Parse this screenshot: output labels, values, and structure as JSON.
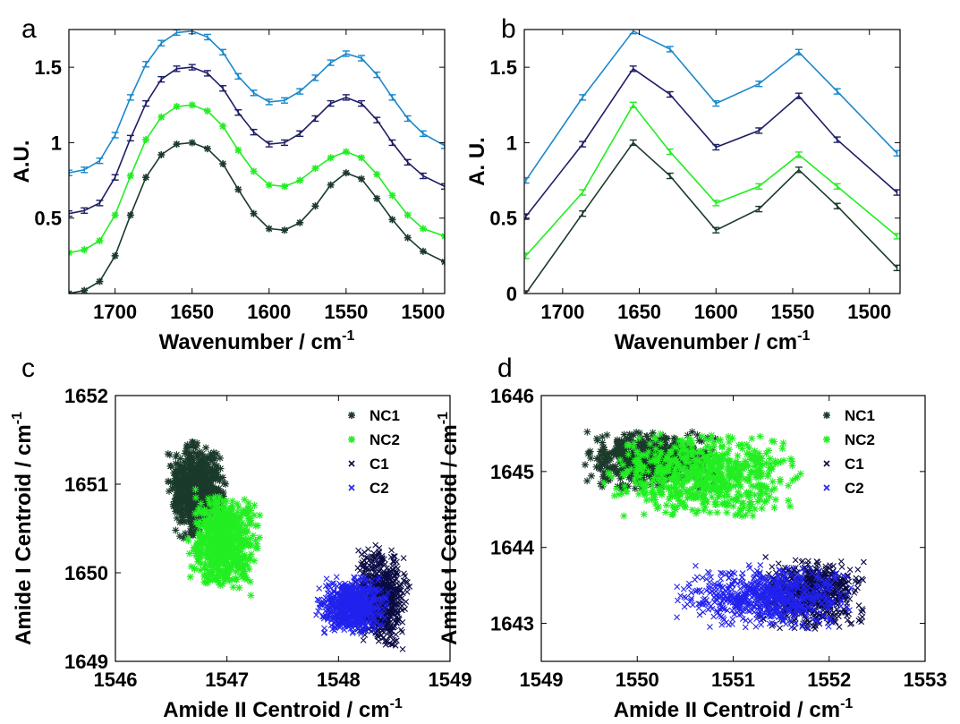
{
  "colors": {
    "NC1": "#1b3a2b",
    "NC2": "#22ee22",
    "C1": "#0b0b44",
    "C2": "#2222ee",
    "top_line": "#1a88cc",
    "second_line": "#1e1e66"
  },
  "chart_data": [
    {
      "panel": "a",
      "type": "line",
      "xlabel": "Wavenumber / cm",
      "xlabel_sup": "-1",
      "ylabel": "A.U.",
      "xlim": [
        1730,
        1486
      ],
      "ylim": [
        0,
        1.75
      ],
      "xticks": [
        "1700",
        "1650",
        "1600",
        "1550",
        "1500"
      ],
      "xtick_values": [
        1700,
        1650,
        1600,
        1550,
        1500
      ],
      "yticks": [
        "0.5",
        "1",
        "1.5"
      ],
      "ytick_values": [
        0.5,
        1,
        1.5
      ],
      "x": [
        1730,
        1720,
        1710,
        1700,
        1690,
        1680,
        1670,
        1660,
        1650,
        1640,
        1630,
        1620,
        1610,
        1600,
        1590,
        1580,
        1570,
        1560,
        1550,
        1540,
        1530,
        1520,
        1510,
        1500,
        1486
      ],
      "series": [
        {
          "color": "top_line",
          "marker": "errorbar",
          "values": [
            0.8,
            0.82,
            0.88,
            1.05,
            1.3,
            1.52,
            1.66,
            1.73,
            1.74,
            1.7,
            1.6,
            1.44,
            1.33,
            1.27,
            1.28,
            1.34,
            1.43,
            1.53,
            1.59,
            1.56,
            1.45,
            1.3,
            1.16,
            1.06,
            0.98
          ]
        },
        {
          "color": "second_line",
          "marker": "errorbar",
          "values": [
            0.53,
            0.55,
            0.6,
            0.77,
            1.03,
            1.26,
            1.42,
            1.49,
            1.5,
            1.46,
            1.36,
            1.2,
            1.07,
            0.99,
            1.0,
            1.06,
            1.16,
            1.26,
            1.3,
            1.26,
            1.15,
            1.0,
            0.87,
            0.78,
            0.71
          ]
        },
        {
          "color": "NC2",
          "marker": "star",
          "values": [
            0.27,
            0.29,
            0.35,
            0.52,
            0.78,
            1.02,
            1.17,
            1.24,
            1.25,
            1.21,
            1.11,
            0.95,
            0.81,
            0.72,
            0.71,
            0.75,
            0.83,
            0.9,
            0.94,
            0.9,
            0.79,
            0.65,
            0.52,
            0.43,
            0.38
          ]
        },
        {
          "color": "NC1",
          "marker": "star",
          "values": [
            0.0,
            0.02,
            0.08,
            0.25,
            0.52,
            0.77,
            0.92,
            0.99,
            1.0,
            0.96,
            0.86,
            0.69,
            0.53,
            0.43,
            0.42,
            0.47,
            0.58,
            0.72,
            0.8,
            0.76,
            0.63,
            0.49,
            0.37,
            0.28,
            0.21
          ]
        }
      ]
    },
    {
      "panel": "b",
      "type": "line",
      "xlabel": "Wavenumber / cm",
      "xlabel_sup": "-1",
      "ylabel": "A. U.",
      "xlim": [
        1725,
        1480
      ],
      "ylim": [
        0,
        1.75
      ],
      "xticks": [
        "1700",
        "1650",
        "1600",
        "1550",
        "1500"
      ],
      "xtick_values": [
        1700,
        1650,
        1600,
        1550,
        1500
      ],
      "yticks": [
        "0",
        "0.5",
        "1",
        "1.5"
      ],
      "ytick_values": [
        0,
        0.5,
        1,
        1.5
      ],
      "x": [
        1724,
        1687,
        1654,
        1630,
        1600,
        1572,
        1546,
        1521,
        1482
      ],
      "series": [
        {
          "color": "top_line",
          "values": [
            0.75,
            1.3,
            1.74,
            1.62,
            1.26,
            1.39,
            1.6,
            1.34,
            0.93
          ]
        },
        {
          "color": "second_line",
          "values": [
            0.51,
            0.99,
            1.49,
            1.32,
            0.97,
            1.08,
            1.31,
            1.02,
            0.67
          ]
        },
        {
          "color": "NC2",
          "values": [
            0.25,
            0.67,
            1.25,
            0.94,
            0.6,
            0.71,
            0.92,
            0.71,
            0.38
          ]
        },
        {
          "color": "NC1",
          "values": [
            0.0,
            0.53,
            1.0,
            0.78,
            0.42,
            0.56,
            0.82,
            0.58,
            0.17
          ]
        }
      ]
    },
    {
      "panel": "c",
      "type": "scatter",
      "xlabel": "Amide II Centroid / cm",
      "xlabel_sup": "-1",
      "ylabel": "Amide I Centroid / cm",
      "ylabel_sup": "-1",
      "xlim": [
        1546,
        1549
      ],
      "ylim": [
        1649,
        1652
      ],
      "xticks": [
        "1546",
        "1547",
        "1548",
        "1549"
      ],
      "xtick_values": [
        1546,
        1547,
        1548,
        1549
      ],
      "yticks": [
        "1649",
        "1650",
        "1651",
        "1652"
      ],
      "ytick_values": [
        1649,
        1650,
        1651,
        1652
      ],
      "legend_position": "top-right",
      "series": [
        {
          "name": "NC1",
          "color": "NC1",
          "marker": "star",
          "center": [
            1546.72,
            1650.95
          ],
          "spread": [
            0.14,
            0.28
          ],
          "tilt": 0.3
        },
        {
          "name": "NC2",
          "color": "NC2",
          "marker": "star",
          "center": [
            1546.97,
            1650.35
          ],
          "spread": [
            0.17,
            0.3
          ],
          "tilt": -0.15
        },
        {
          "name": "C1",
          "color": "C1",
          "marker": "x",
          "center": [
            1548.38,
            1649.72
          ],
          "spread": [
            0.13,
            0.3
          ],
          "tilt": -0.2
        },
        {
          "name": "C2",
          "color": "C2",
          "marker": "x",
          "center": [
            1548.12,
            1649.63
          ],
          "spread": [
            0.17,
            0.17
          ],
          "tilt": 0.0
        }
      ]
    },
    {
      "panel": "d",
      "type": "scatter",
      "xlabel": "Amide II Centroid / cm",
      "xlabel_sup": "-1",
      "ylabel": "Amide I Centroid / cm",
      "ylabel_sup": "-1",
      "xlim": [
        1549,
        1553
      ],
      "ylim": [
        1642.5,
        1646
      ],
      "xticks": [
        "1549",
        "1550",
        "1551",
        "1552",
        "1553"
      ],
      "xtick_values": [
        1549,
        1550,
        1551,
        1552,
        1553
      ],
      "yticks": [
        "1643",
        "1644",
        "1645",
        "1646"
      ],
      "ytick_values": [
        1643,
        1644,
        1645,
        1646
      ],
      "legend_position": "top-right",
      "series": [
        {
          "name": "NC1",
          "color": "NC1",
          "marker": "star",
          "center": [
            1550.15,
            1645.15
          ],
          "spread": [
            0.38,
            0.2
          ],
          "tilt": 0.0
        },
        {
          "name": "NC2",
          "color": "NC2",
          "marker": "star",
          "center": [
            1550.7,
            1644.95
          ],
          "spread": [
            0.55,
            0.3
          ],
          "tilt": 0.0
        },
        {
          "name": "C1",
          "color": "C1",
          "marker": "x",
          "center": [
            1551.8,
            1643.4
          ],
          "spread": [
            0.3,
            0.25
          ],
          "tilt": 0.0
        },
        {
          "name": "C2",
          "color": "C2",
          "marker": "x",
          "center": [
            1551.35,
            1643.35
          ],
          "spread": [
            0.5,
            0.22
          ],
          "tilt": 0.0
        }
      ]
    }
  ]
}
